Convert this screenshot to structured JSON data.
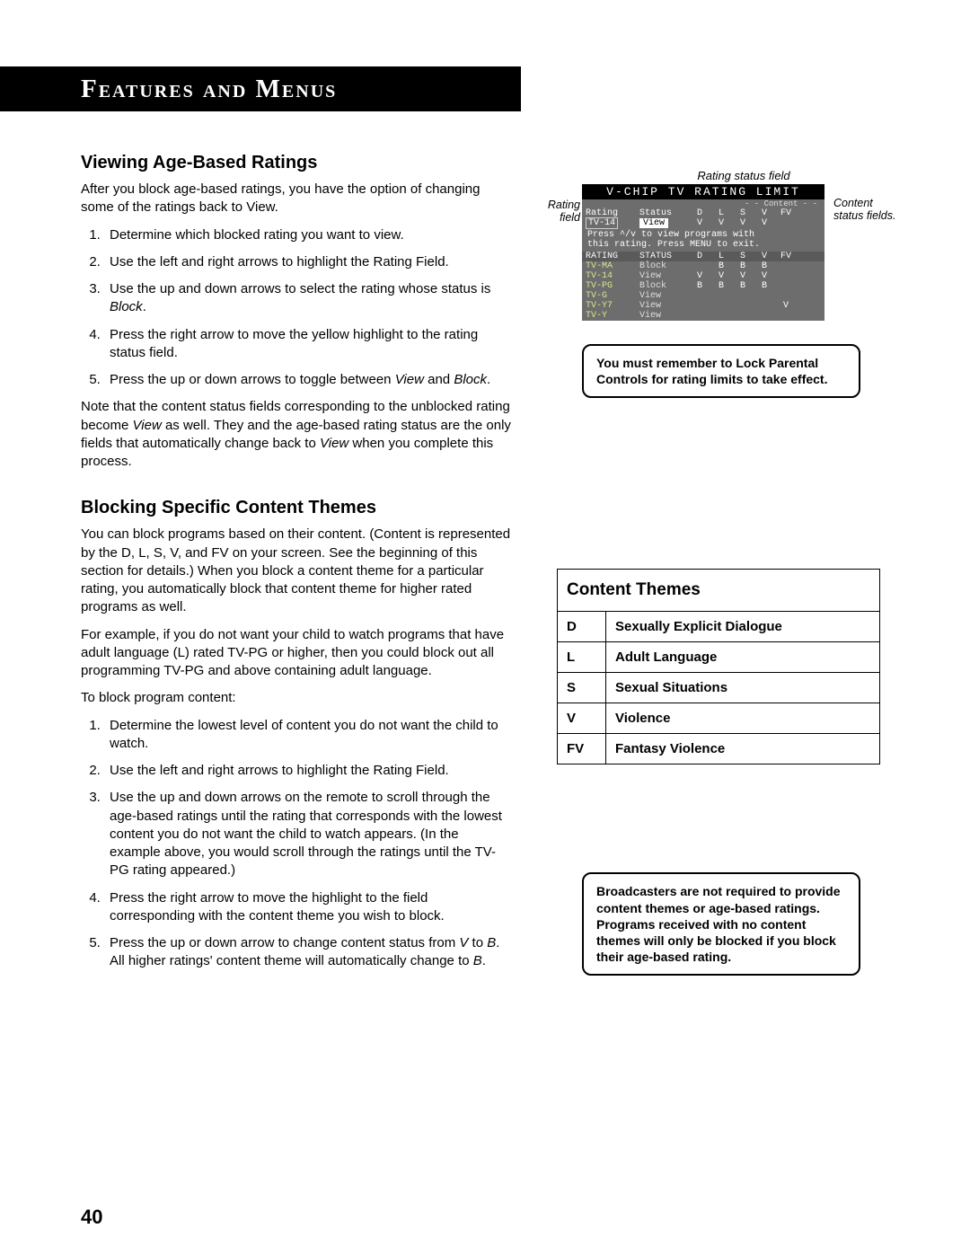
{
  "header": {
    "title": "Features and Menus"
  },
  "pageNumber": "40",
  "section1": {
    "heading": "Viewing Age-Based Ratings",
    "intro": "After you block age-based ratings, you have the option of changing some of the ratings back to View.",
    "steps": [
      "Determine which blocked rating you want to view.",
      "Use the left and right arrows to highlight the Rating Field.",
      "Use the up and down arrows to select the rating whose status is Block.",
      "Press the right arrow to move the yellow highlight to the rating status field.",
      "Press the up or down arrows to toggle between View and Block."
    ],
    "note": "Note that the content status fields corresponding to the unblocked rating become View as well. They and the age-based rating status are the only fields that automatically change back to View when you complete this process."
  },
  "section2": {
    "heading": "Blocking Specific Content Themes",
    "p1": "You can block programs based on their content. (Content is represented by the D, L, S, V, and FV on your screen. See the beginning of this section for details.) When you block a content theme for a particular rating, you automatically block that content theme for higher rated programs as well.",
    "p2": "For example, if you do not want your child to watch programs that have adult language (L) rated TV-PG or higher, then you could block out all programming TV-PG and above containing adult language.",
    "p3": "To block program content:",
    "steps": [
      "Determine the lowest level of content you do not want the child to watch.",
      "Use the left and right arrows to highlight the Rating Field.",
      "Use the up and down arrows on the remote to scroll through the age-based ratings until the rating that corresponds with the lowest content you do not want the child to watch appears. (In the example above, you would scroll through the ratings until the TV-PG rating appeared.)",
      "Press the right arrow to move the highlight to the field corresponding with the content theme you wish to block.",
      "Press the up or down arrow to change content status from V to B. All higher ratings' content theme will automatically change to B."
    ]
  },
  "osd": {
    "captionTop": "Rating status field",
    "annoLeft": "Rating field",
    "annoRight": "Content status fields.",
    "title": "V-CHIP TV RATING LIMIT",
    "sub": "- - Content - -",
    "colheads": {
      "c1": "Rating",
      "c2": "Status",
      "d": "D",
      "l": "L",
      "s": "S",
      "v": "V",
      "fv": "FV"
    },
    "selected": {
      "rating": "TV-14",
      "status": "View",
      "d": "V",
      "l": "V",
      "s": "V",
      "v": "V",
      "fv": ""
    },
    "hint1": "Press ^/v to view programs with",
    "hint2": "this rating. Press MENU to exit.",
    "listhead": {
      "c1": "RATING",
      "c2": "STATUS",
      "d": "D",
      "l": "L",
      "s": "S",
      "v": "V",
      "fv": "FV"
    },
    "rows": [
      {
        "r": "TV-MA",
        "s": "Block",
        "d": "",
        "l": "B",
        "s2": "B",
        "v": "B",
        "fv": ""
      },
      {
        "r": "TV-14",
        "s": "View",
        "d": "V",
        "l": "V",
        "s2": "V",
        "v": "V",
        "fv": ""
      },
      {
        "r": "TV-PG",
        "s": "Block",
        "d": "B",
        "l": "B",
        "s2": "B",
        "v": "B",
        "fv": ""
      },
      {
        "r": "TV-G",
        "s": "View",
        "d": "",
        "l": "",
        "s2": "",
        "v": "",
        "fv": ""
      },
      {
        "r": "TV-Y7",
        "s": "View",
        "d": "",
        "l": "",
        "s2": "",
        "v": "",
        "fv": "V"
      },
      {
        "r": "TV-Y",
        "s": "View",
        "d": "",
        "l": "",
        "s2": "",
        "v": "",
        "fv": ""
      }
    ]
  },
  "noteBox1": "You must remember to Lock Parental Controls for rating limits to take effect.",
  "contentThemes": {
    "title": "Content Themes",
    "rows": [
      {
        "code": "D",
        "desc": "Sexually Explicit Dialogue"
      },
      {
        "code": "L",
        "desc": "Adult Language"
      },
      {
        "code": "S",
        "desc": "Sexual Situations"
      },
      {
        "code": "V",
        "desc": "Violence"
      },
      {
        "code": "FV",
        "desc": "Fantasy Violence"
      }
    ]
  },
  "noteBox2": "Broadcasters are not required to provide content themes or age-based ratings. Programs received with no content themes will only be blocked if you block their age-based rating."
}
